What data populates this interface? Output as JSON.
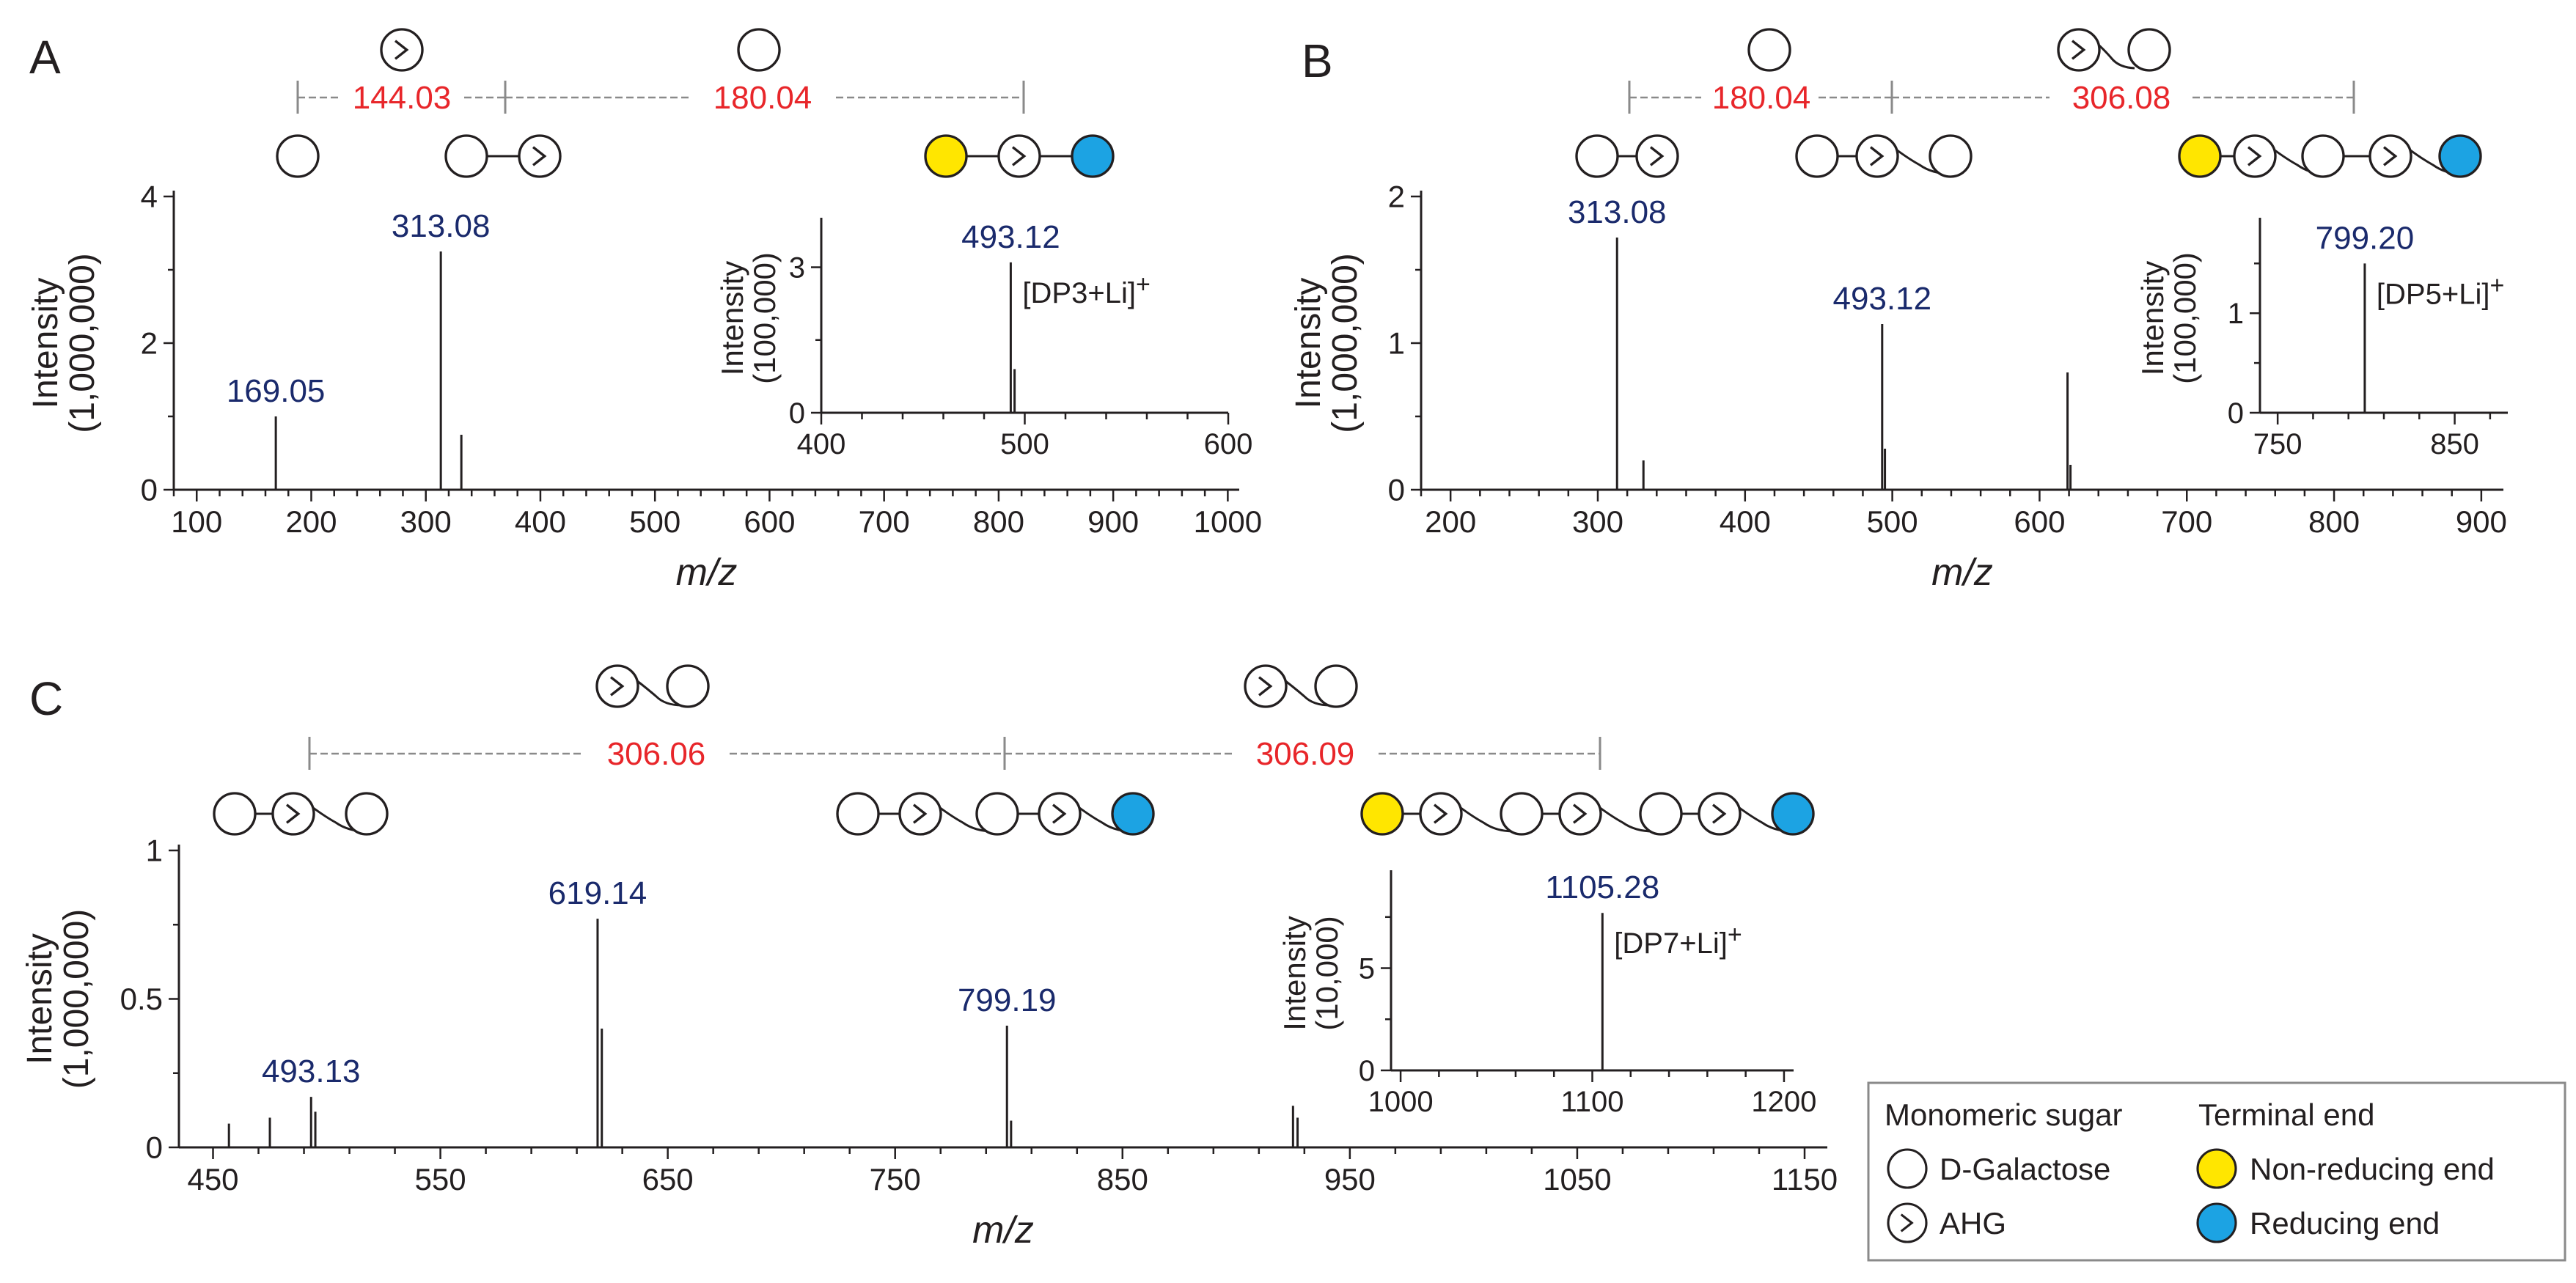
{
  "colors": {
    "peak_label": "#1a2a6c",
    "mass_diff": "#e8262a",
    "axis": "#231f20",
    "bracket": "#8a8a8a",
    "non_reducing": "#ffe600",
    "reducing": "#1ca3e3"
  },
  "chart_data": [
    {
      "id": "A",
      "type": "bar",
      "panel_label": "A",
      "xlabel": "m/z",
      "ylabel": "Intensity",
      "ylabel_unit": "(1,000,000)",
      "xlim": [
        80,
        1010
      ],
      "ylim": [
        0,
        4
      ],
      "x_ticks": [
        100,
        200,
        300,
        400,
        500,
        600,
        700,
        800,
        900,
        1000
      ],
      "y_ticks": [
        0,
        2,
        4
      ],
      "peaks": [
        {
          "mz": 169.05,
          "intensity": 1.0,
          "label": "169.05"
        },
        {
          "mz": 313.08,
          "intensity": 3.25,
          "label": "313.08"
        },
        {
          "mz": 331.0,
          "intensity": 0.75,
          "label": ""
        }
      ],
      "mass_differences": [
        "144.03",
        "180.04"
      ],
      "inset": {
        "xlabel": "",
        "ylabel": "Intensity",
        "ylabel_unit": "(100,000)",
        "xlim": [
          400,
          600
        ],
        "ylim": [
          0,
          3.9
        ],
        "x_ticks": [
          400,
          500,
          600
        ],
        "y_ticks": [
          0,
          3
        ],
        "peaks": [
          {
            "mz": 493.12,
            "intensity": 3.1,
            "label": "493.12"
          },
          {
            "mz": 495.0,
            "intensity": 0.9,
            "label": ""
          }
        ],
        "ion_label": "[DP3+Li]",
        "ion_charge": "+"
      }
    },
    {
      "id": "B",
      "type": "bar",
      "panel_label": "B",
      "xlabel": "m/z",
      "ylabel": "Intensity",
      "ylabel_unit": "(1,000,000)",
      "xlim": [
        180,
        915
      ],
      "ylim": [
        0,
        2
      ],
      "x_ticks": [
        200,
        300,
        400,
        500,
        600,
        700,
        800,
        900
      ],
      "y_ticks": [
        0,
        1,
        2
      ],
      "peaks": [
        {
          "mz": 313.08,
          "intensity": 1.72,
          "label": "313.08"
        },
        {
          "mz": 331.0,
          "intensity": 0.2,
          "label": ""
        },
        {
          "mz": 493.12,
          "intensity": 1.13,
          "label": "493.12"
        },
        {
          "mz": 495.0,
          "intensity": 0.28,
          "label": ""
        },
        {
          "mz": 619.0,
          "intensity": 0.8,
          "label": ""
        },
        {
          "mz": 621.0,
          "intensity": 0.17,
          "label": ""
        }
      ],
      "mass_differences": [
        "180.04",
        "306.08"
      ],
      "inset": {
        "xlabel": "",
        "ylabel": "Intensity",
        "ylabel_unit": "(100,000)",
        "xlim": [
          740,
          880
        ],
        "ylim": [
          0,
          1.9
        ],
        "x_ticks": [
          750,
          850
        ],
        "y_ticks": [
          0,
          1
        ],
        "peaks": [
          {
            "mz": 799.2,
            "intensity": 1.5,
            "label": "799.20"
          }
        ],
        "ion_label": "[DP5+Li]",
        "ion_charge": "+"
      }
    },
    {
      "id": "C",
      "type": "bar",
      "panel_label": "C",
      "xlabel": "m/z",
      "ylabel": "Intensity",
      "ylabel_unit": "(1,000,000)",
      "xlim": [
        435,
        1160
      ],
      "ylim": [
        0,
        1
      ],
      "x_ticks": [
        450,
        550,
        650,
        750,
        850,
        950,
        1050,
        1150
      ],
      "y_ticks": [
        0,
        0.5,
        1
      ],
      "y_tick_labels": [
        "0",
        "0.5",
        "1"
      ],
      "peaks": [
        {
          "mz": 457.0,
          "intensity": 0.08,
          "label": ""
        },
        {
          "mz": 475.0,
          "intensity": 0.1,
          "label": ""
        },
        {
          "mz": 493.13,
          "intensity": 0.17,
          "label": "493.13"
        },
        {
          "mz": 495.0,
          "intensity": 0.12,
          "label": ""
        },
        {
          "mz": 619.14,
          "intensity": 0.77,
          "label": "619.14"
        },
        {
          "mz": 621.0,
          "intensity": 0.4,
          "label": ""
        },
        {
          "mz": 799.19,
          "intensity": 0.41,
          "label": "799.19"
        },
        {
          "mz": 801.0,
          "intensity": 0.09,
          "label": ""
        },
        {
          "mz": 925.0,
          "intensity": 0.14,
          "label": ""
        },
        {
          "mz": 927.0,
          "intensity": 0.1,
          "label": ""
        }
      ],
      "mass_differences": [
        "306.06",
        "306.09"
      ],
      "inset": {
        "xlabel": "",
        "ylabel": "Intensity",
        "ylabel_unit": "(10,000)",
        "xlim": [
          995,
          1205
        ],
        "ylim": [
          0,
          9.5
        ],
        "x_ticks": [
          1000,
          1100,
          1200
        ],
        "y_ticks": [
          0,
          5
        ],
        "peaks": [
          {
            "mz": 1105.28,
            "intensity": 7.7,
            "label": "1105.28"
          }
        ],
        "ion_label": "[DP7+Li]",
        "ion_charge": "+"
      }
    }
  ],
  "legend": {
    "col1_title": "Monomeric sugar",
    "col2_title": "Terminal end",
    "galactose": "D-Galactose",
    "ahg": "AHG",
    "non_reducing": "Non-reducing end",
    "reducing": "Reducing end"
  }
}
